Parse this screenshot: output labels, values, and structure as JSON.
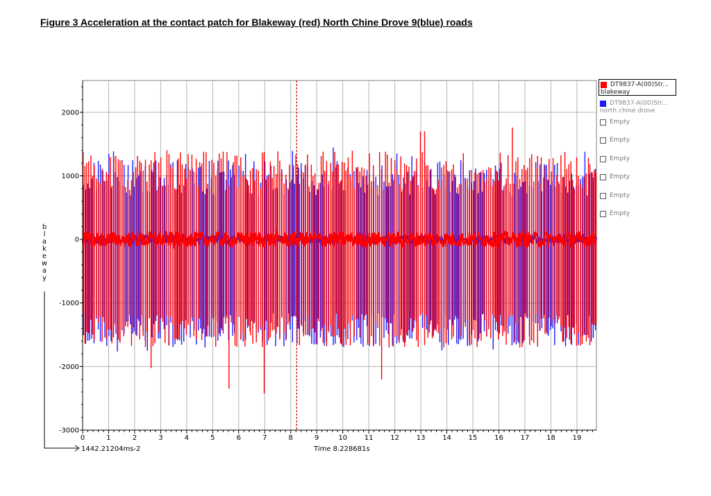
{
  "figure_title": "Figure 3 Acceleration at the contact patch for Blakeway (red) North Chine Drove 9(blue) roads",
  "colors": {
    "red": "#ff0000",
    "blue": "#1a1aff",
    "grid": "#b4b4b4",
    "cursor": "#cc0000"
  },
  "legend": {
    "items": [
      {
        "name": "DT9837-A(00)Str...",
        "sub": "blakeway",
        "color": "#ff0000",
        "selected": true
      },
      {
        "name": "DT9837-A(00)Str...",
        "sub": "north chine drove",
        "color": "#1a1aff",
        "selected": false
      }
    ],
    "empty_slots": [
      "Empty",
      "Empty",
      "Empty",
      "Empty",
      "Empty",
      "Empty"
    ]
  },
  "chart_data": {
    "type": "line",
    "title": "Figure 3 Acceleration at the contact patch for Blakeway (red) North Chine Drove 9(blue) roads",
    "ylabel": "blakeway",
    "x_readout": "1442.21204ms-2",
    "cursor_readout": "Time 8.228681s",
    "cursor_time": 8.228681,
    "xlim": [
      0,
      19.75
    ],
    "ylim": [
      -3000,
      2500
    ],
    "x_ticks": [
      0,
      1,
      2,
      3,
      4,
      5,
      6,
      7,
      8,
      9,
      10,
      11,
      12,
      13,
      14,
      15,
      16,
      17,
      18,
      19
    ],
    "x_tick_labels": [
      "0",
      "1",
      "2",
      "3",
      "4",
      "5",
      "6",
      "7",
      "8",
      "9",
      "10",
      "11",
      "12",
      "13",
      "14",
      "15",
      "16",
      "17",
      "18",
      "19"
    ],
    "y_ticks": [
      2000,
      1000,
      0,
      -1000,
      -2000,
      -3000
    ],
    "y_tick_labels": [
      "2000",
      "1000",
      "0",
      "-1000",
      "-2000",
      "-3000"
    ],
    "grid": true,
    "series": [
      {
        "name": "blakeway",
        "color": "#ff0000",
        "typical_peak": 1400,
        "typical_trough": -1550,
        "max": 1800,
        "min": -2480,
        "baseline_noise": 120
      },
      {
        "name": "north chine drove",
        "color": "#1a1aff",
        "typical_peak": 1250,
        "typical_trough": -1550,
        "max": 1450,
        "min": -1900,
        "baseline_noise": 60
      }
    ]
  }
}
